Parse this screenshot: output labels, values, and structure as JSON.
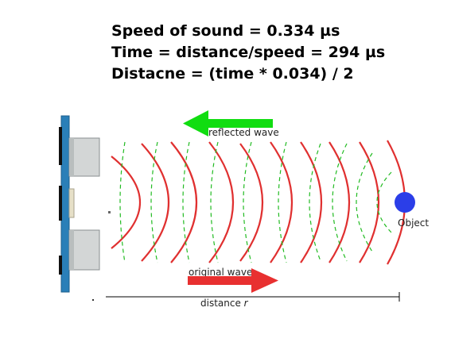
{
  "formulas": {
    "speed": "Speed of sound = 0.334 µs",
    "time": "Time = distance/speed = 294 µs",
    "distance": "Distacne = (time * 0.034) / 2"
  },
  "labels": {
    "reflected_wave": "reflected wave",
    "original_wave": "original wave",
    "object": "Object",
    "distance_prefix": "distance ",
    "distance_var": "r"
  },
  "colors": {
    "original_wave": "#e03030",
    "reflected_wave": "#22bb22",
    "reflected_arrow": "#11dd11",
    "original_arrow": "#e83030",
    "object": "#2b3ee8",
    "sensor_board": "#2a7fb8",
    "transducer": "#cfd3d3"
  }
}
